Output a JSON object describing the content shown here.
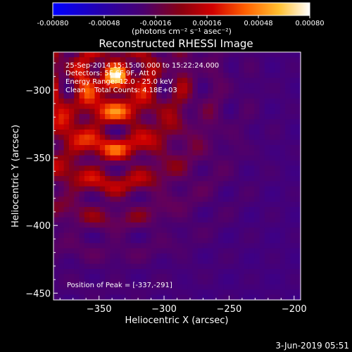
{
  "colorbar": {
    "tick_labels": [
      "-0.00080",
      "-0.00048",
      "-0.00016",
      "0.00016",
      "0.00048",
      "0.00080"
    ],
    "units_label": "(photons cm⁻² s⁻¹ asec⁻²)",
    "range": [
      -0.0008,
      0.0008
    ],
    "colormap": [
      "#0000ff",
      "#1a00b0",
      "#3a007a",
      "#60006a",
      "#8a0020",
      "#b30000",
      "#e01a00",
      "#ff5a00",
      "#ff9a10",
      "#ffd040",
      "#ffffa0",
      "#ffffff"
    ]
  },
  "chart_data": {
    "type": "heatmap",
    "title": "Reconstructed RHESSI Image",
    "xlabel": "Heliocentric X (arcsec)",
    "ylabel": "Heliocentric Y (arcsec)",
    "xlim": [
      -385,
      -195
    ],
    "ylim": [
      -455,
      -272
    ],
    "x_ticks": [
      -350,
      -300,
      -250,
      -200
    ],
    "x_tick_labels": [
      "−350",
      "−300",
      "−250",
      "−200"
    ],
    "y_ticks": [
      -300,
      -350,
      -400,
      -450
    ],
    "y_tick_labels": [
      "−300",
      "−350",
      "−400",
      "−450"
    ],
    "peak": [
      -337,
      -291
    ],
    "grid": false,
    "annotations": [
      "25-Sep-2014 15:15:00.000 to 15:22:24.000",
      "Detectors: 5F 6F 9F, Att 0",
      "Energy Range: 12.0 - 25.0 keV",
      "Clean    Total Counts: 4.18E+03"
    ],
    "peak_label": "Position of Peak = [-337,-291]"
  },
  "footer": {
    "date": "3-Jun-2019 05:51"
  }
}
